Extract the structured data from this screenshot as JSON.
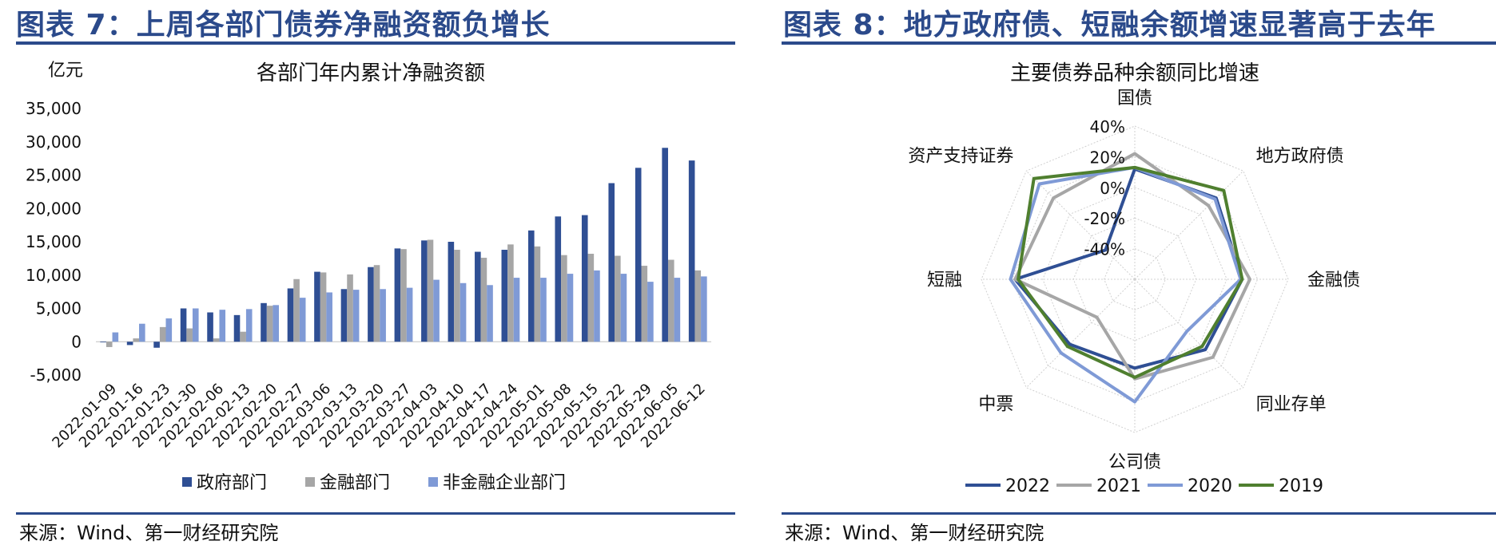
{
  "left": {
    "figure_title": "图表 7：上周各部门债券净融资额负增长",
    "source": "来源：Wind、第一财经研究院"
  },
  "right": {
    "figure_title": "图表 8：地方政府债、短融余额增速显著高于去年",
    "source": "来源：Wind、第一财经研究院"
  },
  "chart_data": [
    {
      "type": "bar",
      "title": "各部门年内累计净融资额",
      "unit_label": "亿元",
      "ylim": [
        -5000,
        35000
      ],
      "yticks": [
        -5000,
        0,
        5000,
        10000,
        15000,
        20000,
        25000,
        30000,
        35000
      ],
      "ytick_labels": [
        "-5,000",
        "0",
        "5,000",
        "10,000",
        "15,000",
        "20,000",
        "25,000",
        "30,000",
        "35,000"
      ],
      "legend_position": "bottom",
      "categories": [
        "2022-01-09",
        "2022-01-16",
        "2022-01-23",
        "2022-01-30",
        "2022-02-06",
        "2022-02-13",
        "2022-02-20",
        "2022-02-27",
        "2022-03-06",
        "2022-03-13",
        "2022-03-20",
        "2022-03-27",
        "2022-04-03",
        "2022-04-10",
        "2022-04-17",
        "2022-04-24",
        "2022-05-01",
        "2022-05-08",
        "2022-05-15",
        "2022-05-22",
        "2022-05-29",
        "2022-06-05",
        "2022-06-12"
      ],
      "series": [
        {
          "name": "政府部门",
          "color": "#2f4f94",
          "values": [
            0,
            -500,
            -900,
            5000,
            4400,
            4000,
            5800,
            8000,
            10500,
            7900,
            11200,
            14000,
            15200,
            15000,
            13500,
            13800,
            16700,
            18800,
            19000,
            23800,
            26100,
            29100,
            27200
          ]
        },
        {
          "name": "金融部门",
          "color": "#a6a6a6",
          "values": [
            -800,
            500,
            2200,
            2000,
            500,
            1500,
            5400,
            9400,
            10400,
            10100,
            11500,
            13900,
            15300,
            13800,
            12600,
            14600,
            14300,
            13000,
            13200,
            12900,
            11400,
            12300,
            10700
          ]
        },
        {
          "name": "非金融企业部门",
          "color": "#7f9ad6",
          "values": [
            1400,
            2700,
            3500,
            5000,
            4800,
            4900,
            5500,
            6600,
            7400,
            7800,
            7900,
            8100,
            9300,
            8800,
            8500,
            9600,
            9600,
            10200,
            10700,
            10200,
            9000,
            9600,
            9800
          ]
        }
      ]
    },
    {
      "type": "radar",
      "title": "主要债券品种余额同比增速",
      "axes": [
        "国债",
        "地方政府债",
        "金融债",
        "同业存单",
        "公司债",
        "中票",
        "短融",
        "资产支持证券"
      ],
      "rlim": [
        -60,
        40
      ],
      "rticks": [
        40,
        20,
        0,
        -20,
        -40
      ],
      "rtick_labels": [
        "40%",
        "20%",
        "0%",
        "-20%",
        "-40%"
      ],
      "grid": true,
      "legend_position": "bottom",
      "series": [
        {
          "name": "2022",
          "color": "#2f4f94",
          "values": [
            12,
            15,
            10,
            5,
            -2,
            0,
            18,
            -33
          ]
        },
        {
          "name": "2021",
          "color": "#a6a6a6",
          "values": [
            22,
            8,
            15,
            12,
            5,
            -25,
            18,
            15
          ]
        },
        {
          "name": "2020",
          "color": "#7f9ad6",
          "values": [
            13,
            14,
            9,
            -12,
            20,
            8,
            21,
            28
          ]
        },
        {
          "name": "2019",
          "color": "#4f7f2f",
          "values": [
            13,
            22,
            10,
            2,
            4,
            2,
            16,
            33
          ]
        }
      ]
    }
  ]
}
